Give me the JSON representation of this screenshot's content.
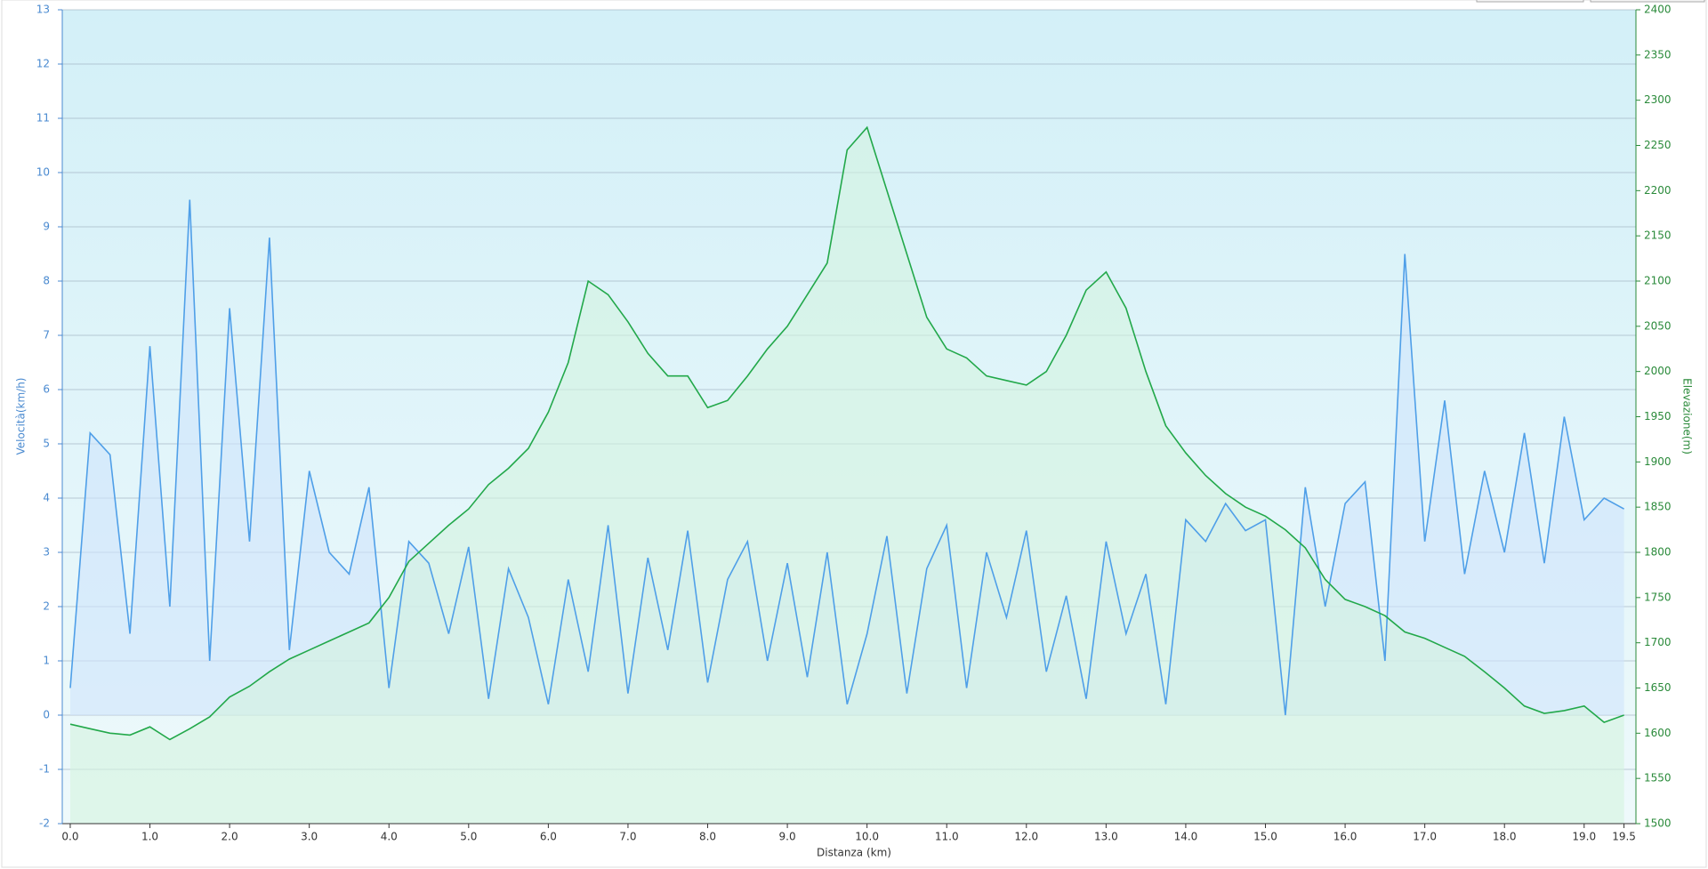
{
  "chart_data": {
    "type": "line",
    "x_label": "Distanza  (km)",
    "y_label": "Velocità(km/h)",
    "y2_label": "Elevazione(m)",
    "xlim": [
      -0.1,
      19.65
    ],
    "xticks": [
      {
        "value": 0,
        "label": "0.0"
      },
      {
        "value": 1,
        "label": "1.0"
      },
      {
        "value": 2,
        "label": "2.0"
      },
      {
        "value": 3,
        "label": "3.0"
      },
      {
        "value": 4,
        "label": "4.0"
      },
      {
        "value": 5,
        "label": "5.0"
      },
      {
        "value": 6,
        "label": "6.0"
      },
      {
        "value": 7,
        "label": "7.0"
      },
      {
        "value": 8,
        "label": "8.0"
      },
      {
        "value": 9,
        "label": "9.0"
      },
      {
        "value": 10,
        "label": "10.0"
      },
      {
        "value": 11,
        "label": "11.0"
      },
      {
        "value": 12,
        "label": "12.0"
      },
      {
        "value": 13,
        "label": "13.0"
      },
      {
        "value": 14,
        "label": "14.0"
      },
      {
        "value": 15,
        "label": "15.0"
      },
      {
        "value": 16,
        "label": "16.0"
      },
      {
        "value": 17,
        "label": "17.0"
      },
      {
        "value": 18,
        "label": "18.0"
      },
      {
        "value": 19,
        "label": "19.0"
      },
      {
        "value": 19.5,
        "label": "19.5"
      }
    ],
    "ylim": [
      -2,
      13
    ],
    "yticks": [
      -2,
      -1,
      0,
      1,
      2,
      3,
      4,
      5,
      6,
      7,
      8,
      9,
      10,
      11,
      12,
      13
    ],
    "y2lim": [
      1500,
      2400
    ],
    "y2ticks": [
      1500,
      1550,
      1600,
      1650,
      1700,
      1750,
      1800,
      1850,
      1900,
      1950,
      2000,
      2050,
      2100,
      2150,
      2200,
      2250,
      2300,
      2350,
      2400
    ],
    "grid": true,
    "x": [
      0,
      0.25,
      0.5,
      0.75,
      1,
      1.25,
      1.5,
      1.75,
      2,
      2.25,
      2.5,
      2.75,
      3,
      3.25,
      3.5,
      3.75,
      4,
      4.25,
      4.5,
      4.75,
      5,
      5.25,
      5.5,
      5.75,
      6,
      6.25,
      6.5,
      6.75,
      7,
      7.25,
      7.5,
      7.75,
      8,
      8.25,
      8.5,
      8.75,
      9,
      9.25,
      9.5,
      9.75,
      10,
      10.25,
      10.5,
      10.75,
      11,
      11.25,
      11.5,
      11.75,
      12,
      12.25,
      12.5,
      12.75,
      13,
      13.25,
      13.5,
      13.75,
      14,
      14.25,
      14.5,
      14.75,
      15,
      15.25,
      15.5,
      15.75,
      16,
      16.25,
      16.5,
      16.75,
      17,
      17.25,
      17.5,
      17.75,
      18,
      18.25,
      18.5,
      18.75,
      19,
      19.25,
      19.5
    ],
    "series": [
      {
        "color": "#4f9fe8",
        "fill": "#cfe4fb",
        "axis": "y",
        "values": [
          0.5,
          5.2,
          4.8,
          1.5,
          6.8,
          2.0,
          9.5,
          1.0,
          7.5,
          3.2,
          8.8,
          1.2,
          4.5,
          3.0,
          2.6,
          4.2,
          0.5,
          3.2,
          2.8,
          1.5,
          3.1,
          0.3,
          2.7,
          1.8,
          0.2,
          2.5,
          0.8,
          3.5,
          0.4,
          2.9,
          1.2,
          3.4,
          0.6,
          2.5,
          3.2,
          1.0,
          2.8,
          0.7,
          3.0,
          0.2,
          1.5,
          3.3,
          0.4,
          2.7,
          3.5,
          0.5,
          3.0,
          1.8,
          3.4,
          0.8,
          2.2,
          0.3,
          3.2,
          1.5,
          2.6,
          0.2,
          3.6,
          3.2,
          3.9,
          3.4,
          3.6,
          0.0,
          4.2,
          2.0,
          3.9,
          4.3,
          1.0,
          8.5,
          3.2,
          5.8,
          2.6,
          4.5,
          3.0,
          5.2,
          2.8,
          5.5,
          3.6,
          4.0,
          3.8
        ]
      },
      {
        "color": "#22a84a",
        "fill": "#d4f3e0",
        "axis": "y2",
        "values": [
          1610,
          1605,
          1600,
          1598,
          1607,
          1593,
          1605,
          1618,
          1640,
          1652,
          1668,
          1682,
          1692,
          1702,
          1712,
          1722,
          1750,
          1790,
          1810,
          1830,
          1848,
          1875,
          1893,
          1915,
          1955,
          2010,
          2100,
          2085,
          2055,
          2020,
          1995,
          1995,
          1960,
          1968,
          1995,
          2025,
          2050,
          2085,
          2120,
          2245,
          2270,
          2200,
          2130,
          2060,
          2025,
          2015,
          1995,
          1990,
          1985,
          2000,
          2040,
          2090,
          2110,
          2070,
          2000,
          1940,
          1910,
          1885,
          1865,
          1850,
          1840,
          1825,
          1805,
          1770,
          1748,
          1740,
          1730,
          1712,
          1705,
          1695,
          1685,
          1668,
          1650,
          1630,
          1622,
          1625,
          1630,
          1612,
          1620
        ]
      }
    ]
  }
}
